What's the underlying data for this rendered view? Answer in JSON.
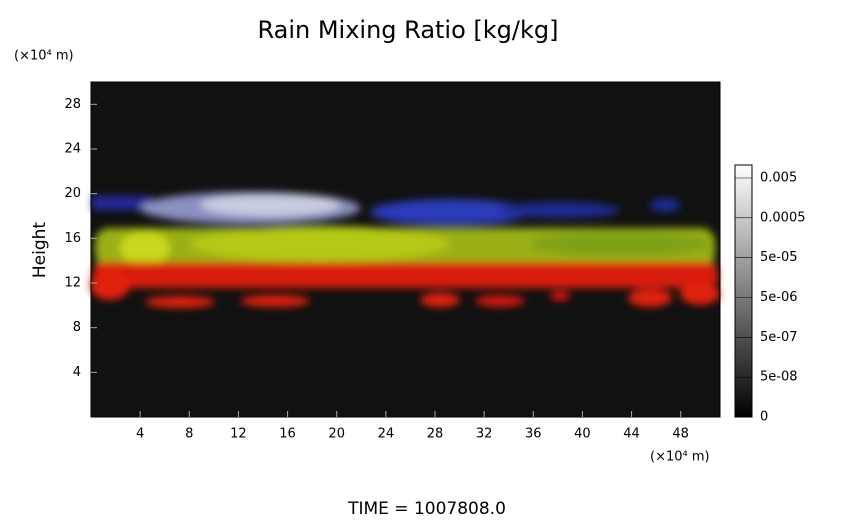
{
  "chart_data": {
    "type": "volume-render",
    "title": "Rain Mixing Ratio [kg/kg]",
    "ylabel": "Height",
    "yunit": "(×10⁴ m)",
    "xunit": "(×10⁴ m)",
    "xlim": [
      0,
      51.2
    ],
    "xticks": [
      4,
      8,
      12,
      16,
      20,
      24,
      28,
      32,
      36,
      40,
      44,
      48
    ],
    "ylim": [
      0,
      30
    ],
    "yticks": [
      4,
      8,
      12,
      16,
      20,
      24,
      28
    ],
    "colorbar_ticks": [
      0.005,
      0.0005,
      {
        "value": 5e-05,
        "label": "5e-05"
      },
      {
        "value": 5e-06,
        "label": "5e-06"
      },
      {
        "value": 5e-07,
        "label": "5e-07"
      },
      {
        "value": 5e-08,
        "label": "5e-08"
      },
      0
    ],
    "time_label": "TIME = 1007808.0"
  }
}
